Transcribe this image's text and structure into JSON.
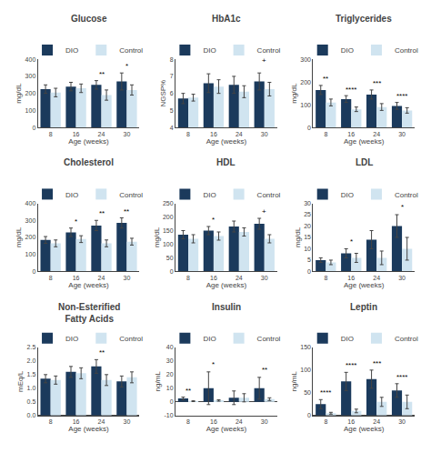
{
  "chart_data": [
    {
      "type": "bar",
      "title": "Glucose",
      "xlabel": "Age (weeks)",
      "ylabel": "mg/dL",
      "categories": [
        8,
        16,
        24,
        30
      ],
      "series": [
        {
          "name": "DIO",
          "color": "#1b3a5c",
          "values": [
            225,
            240,
            250,
            270
          ],
          "errors": [
            25,
            25,
            25,
            50
          ]
        },
        {
          "name": "Control",
          "color": "#d0e4f0",
          "values": [
            205,
            230,
            190,
            220
          ],
          "errors": [
            25,
            25,
            30,
            30
          ]
        }
      ],
      "annotations": [
        {
          "x": 24,
          "y": 280,
          "text": "**"
        },
        {
          "x": 30,
          "y": 325,
          "text": "*"
        }
      ],
      "ylim": [
        0,
        400
      ],
      "yticks": [
        0,
        100,
        200,
        300,
        400
      ],
      "grid": false,
      "legend": "top"
    },
    {
      "type": "bar",
      "title": "HbA1c",
      "xlabel": "Age (weeks)",
      "ylabel": "NGSP%",
      "categories": [
        8,
        16,
        24,
        30
      ],
      "series": [
        {
          "name": "DIO",
          "color": "#1b3a5c",
          "values": [
            5.7,
            6.6,
            6.5,
            6.7
          ],
          "errors": [
            0.3,
            0.55,
            0.5,
            0.5
          ]
        },
        {
          "name": "Control",
          "color": "#d0e4f0",
          "values": [
            5.75,
            6.4,
            6.1,
            6.25
          ],
          "errors": [
            0.2,
            0.4,
            0.35,
            0.4
          ]
        }
      ],
      "annotations": [
        {
          "x": 30,
          "y": 7.6,
          "text": "+"
        }
      ],
      "ylim": [
        4,
        8
      ],
      "yticks": [
        4,
        5,
        6,
        7,
        8
      ],
      "grid": false,
      "legend": "top"
    },
    {
      "type": "bar",
      "title": "Triglycerides",
      "xlabel": "Age (weeks)",
      "ylabel": "mg/dL",
      "categories": [
        8,
        16,
        24,
        30
      ],
      "series": [
        {
          "name": "DIO",
          "color": "#1b3a5c",
          "values": [
            165,
            125,
            145,
            95
          ],
          "errors": [
            20,
            15,
            20,
            15
          ]
        },
        {
          "name": "Control",
          "color": "#d0e4f0",
          "values": [
            110,
            80,
            90,
            75
          ],
          "errors": [
            15,
            10,
            15,
            12
          ]
        }
      ],
      "annotations": [
        {
          "x": 8,
          "y": 188,
          "text": "**"
        },
        {
          "x": 16,
          "y": 142,
          "text": "****"
        },
        {
          "x": 24,
          "y": 168,
          "text": "***"
        },
        {
          "x": 30,
          "y": 112,
          "text": "****"
        }
      ],
      "ylim": [
        0,
        300
      ],
      "yticks": [
        0,
        100,
        200,
        300
      ],
      "grid": false,
      "legend": "top"
    },
    {
      "type": "bar",
      "title": "Cholesterol",
      "xlabel": "Age (weeks)",
      "ylabel": "mg/dL",
      "categories": [
        8,
        16,
        24,
        30
      ],
      "series": [
        {
          "name": "DIO",
          "color": "#1b3a5c",
          "values": [
            185,
            230,
            270,
            285
          ],
          "errors": [
            20,
            25,
            30,
            30
          ]
        },
        {
          "name": "Control",
          "color": "#d0e4f0",
          "values": [
            165,
            190,
            165,
            175
          ],
          "errors": [
            20,
            20,
            20,
            20
          ]
        }
      ],
      "annotations": [
        {
          "x": 16,
          "y": 258,
          "text": "*"
        },
        {
          "x": 24,
          "y": 305,
          "text": "**"
        },
        {
          "x": 30,
          "y": 320,
          "text": "**"
        }
      ],
      "ylim": [
        0,
        400
      ],
      "yticks": [
        0,
        100,
        200,
        300,
        400
      ],
      "grid": false,
      "legend": "top"
    },
    {
      "type": "bar",
      "title": "HDL",
      "xlabel": "Age (weeks)",
      "ylabel": "mg/dL",
      "categories": [
        8,
        16,
        24,
        30
      ],
      "series": [
        {
          "name": "DIO",
          "color": "#1b3a5c",
          "values": [
            135,
            150,
            165,
            175
          ],
          "errors": [
            15,
            15,
            20,
            20
          ]
        },
        {
          "name": "Control",
          "color": "#d0e4f0",
          "values": [
            120,
            130,
            145,
            120
          ],
          "errors": [
            15,
            15,
            15,
            15
          ]
        }
      ],
      "annotations": [
        {
          "x": 16,
          "y": 170,
          "text": "*"
        },
        {
          "x": 30,
          "y": 198,
          "text": "+"
        }
      ],
      "ylim": [
        0,
        250
      ],
      "yticks": [
        0,
        50,
        100,
        150,
        200,
        250
      ],
      "grid": false,
      "legend": "top"
    },
    {
      "type": "bar",
      "title": "LDL",
      "xlabel": "Age (weeks)",
      "ylabel": "mg/dL",
      "categories": [
        8,
        16,
        24,
        30
      ],
      "series": [
        {
          "name": "DIO",
          "color": "#1b3a5c",
          "values": [
            5,
            8,
            14,
            20
          ],
          "errors": [
            1,
            2,
            4,
            5
          ]
        },
        {
          "name": "Control",
          "color": "#d0e4f0",
          "values": [
            4,
            6,
            6,
            10
          ],
          "errors": [
            1,
            2,
            3,
            5
          ]
        }
      ],
      "annotations": [
        {
          "x": 16,
          "y": 10.5,
          "text": "*"
        },
        {
          "x": 30,
          "y": 26,
          "text": "*"
        }
      ],
      "ylim": [
        0,
        30
      ],
      "yticks": [
        0,
        5,
        10,
        15,
        20,
        25,
        30
      ],
      "grid": false,
      "legend": "top"
    },
    {
      "type": "bar",
      "title": "Non-Esterified\nFatty Acids",
      "xlabel": "Age (weeks)",
      "ylabel": "mEq/L",
      "categories": [
        8,
        16,
        24,
        30
      ],
      "series": [
        {
          "name": "DIO",
          "color": "#1b3a5c",
          "values": [
            1.35,
            1.6,
            1.8,
            1.25
          ],
          "errors": [
            0.15,
            0.2,
            0.25,
            0.2
          ]
        },
        {
          "name": "Control",
          "color": "#d0e4f0",
          "values": [
            1.3,
            1.55,
            1.3,
            1.4
          ],
          "errors": [
            0.15,
            0.2,
            0.2,
            0.2
          ]
        }
      ],
      "annotations": [
        {
          "x": 24,
          "y": 2.1,
          "text": "**"
        }
      ],
      "ylim": [
        0.0,
        2.5
      ],
      "yticks": [
        {
          "value": 0.0,
          "label": "0.0"
        },
        0.5,
        {
          "value": 1.0,
          "label": "1.0"
        },
        1.5,
        {
          "value": 2.0,
          "label": "2.0"
        },
        2.5
      ],
      "grid": false,
      "legend": "top"
    },
    {
      "type": "bar",
      "title": "Insulin",
      "xlabel": "Age (weeks)",
      "ylabel": "ng/mL",
      "categories": [
        8,
        16,
        24,
        30
      ],
      "series": [
        {
          "name": "DIO",
          "color": "#1b3a5c",
          "values": [
            2.5,
            10,
            3,
            10
          ],
          "errors": [
            1,
            12,
            5,
            8
          ]
        },
        {
          "name": "Control",
          "color": "#d0e4f0",
          "values": [
            0.5,
            1,
            3,
            2
          ],
          "errors": [
            0.3,
            0.5,
            3,
            1
          ]
        }
      ],
      "annotations": [
        {
          "x": 8,
          "y": 3.8,
          "text": "**"
        },
        {
          "x": 16,
          "y": 23,
          "text": "*"
        },
        {
          "x": 30,
          "y": 19.5,
          "text": "**"
        }
      ],
      "ylim": [
        -10,
        40
      ],
      "yticks": [
        -10,
        0,
        10,
        20,
        30,
        40
      ],
      "grid": false,
      "legend": "top"
    },
    {
      "type": "bar",
      "title": "Leptin",
      "xlabel": "Age (weeks)",
      "ylabel": "ng/mL",
      "categories": [
        8,
        16,
        24,
        30
      ],
      "series": [
        {
          "name": "DIO",
          "color": "#1b3a5c",
          "values": [
            25,
            75,
            80,
            55
          ],
          "errors": [
            10,
            20,
            20,
            15
          ]
        },
        {
          "name": "Control",
          "color": "#d0e4f0",
          "values": [
            5,
            10,
            30,
            30
          ],
          "errors": [
            2,
            4,
            10,
            15
          ]
        }
      ],
      "annotations": [
        {
          "x": 8,
          "y": 37,
          "text": "****"
        },
        {
          "x": 16,
          "y": 97,
          "text": "****"
        },
        {
          "x": 24,
          "y": 102,
          "text": "***"
        },
        {
          "x": 30,
          "y": 72,
          "text": "****"
        }
      ],
      "ylim": [
        0,
        150
      ],
      "yticks": [
        0,
        50,
        100,
        150
      ],
      "grid": false,
      "legend": "top"
    }
  ]
}
